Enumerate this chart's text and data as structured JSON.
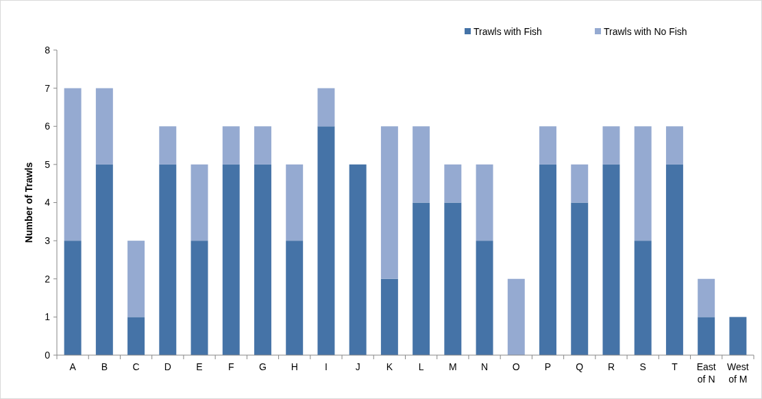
{
  "chart_data": {
    "type": "bar",
    "stacked": true,
    "ylabel": "Number of Trawls",
    "categories": [
      "A",
      "B",
      "C",
      "D",
      "E",
      "F",
      "G",
      "H",
      "I",
      "J",
      "K",
      "L",
      "M",
      "N",
      "O",
      "P",
      "Q",
      "R",
      "S",
      "T",
      "East of N",
      "West of M"
    ],
    "series": [
      {
        "name": "Trawls with Fish",
        "color": "#4573a7",
        "values": [
          3,
          5,
          1,
          5,
          3,
          5,
          5,
          3,
          6,
          5,
          2,
          4,
          4,
          3,
          0,
          5,
          4,
          5,
          3,
          5,
          1,
          1
        ]
      },
      {
        "name": "Trawls with No Fish",
        "color": "#95aad1",
        "values": [
          4,
          2,
          2,
          1,
          2,
          1,
          1,
          2,
          1,
          0,
          4,
          2,
          1,
          2,
          2,
          1,
          1,
          1,
          3,
          1,
          1,
          0
        ]
      }
    ],
    "ylim": [
      0,
      8
    ],
    "yticks": [
      0,
      1,
      2,
      3,
      4,
      5,
      6,
      7,
      8
    ],
    "grid": false,
    "legend": "top right"
  }
}
